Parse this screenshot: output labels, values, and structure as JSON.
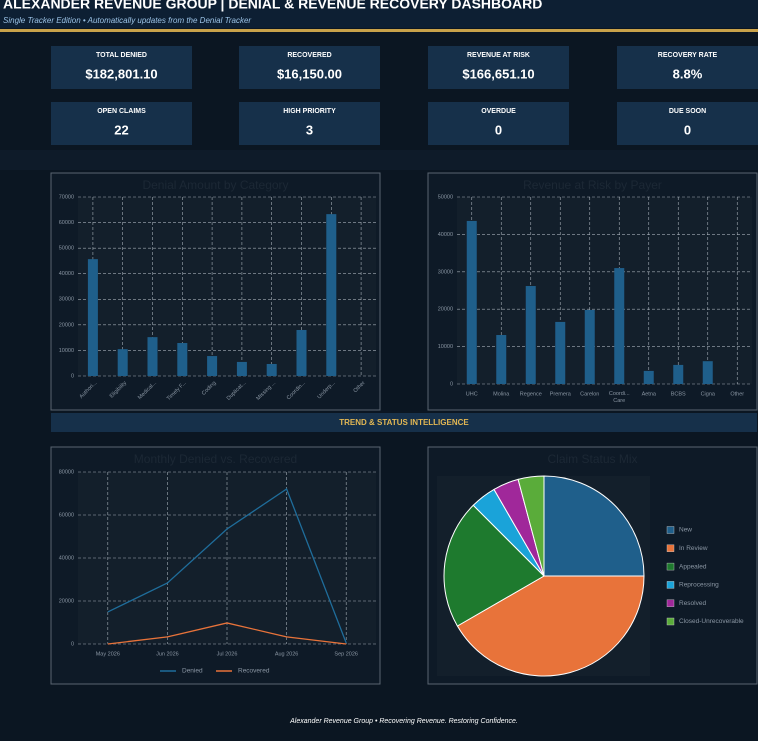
{
  "header": {
    "title": "ALEXANDER REVENUE GROUP | DENIAL & REVENUE RECOVERY DASHBOARD",
    "subtitle": "Single Tracker Edition • Automatically updates from the Denial Tracker"
  },
  "kpis": [
    {
      "label": "TOTAL DENIED",
      "value": "$182,801.10"
    },
    {
      "label": "RECOVERED",
      "value": "$16,150.00"
    },
    {
      "label": "REVENUE AT RISK",
      "value": "$166,651.10"
    },
    {
      "label": "RECOVERY RATE",
      "value": "8.8%"
    },
    {
      "label": "OPEN CLAIMS",
      "value": "22"
    },
    {
      "label": "HIGH PRIORITY",
      "value": "3"
    },
    {
      "label": "OVERDUE",
      "value": "0"
    },
    {
      "label": "DUE SOON",
      "value": "0"
    }
  ],
  "section_title": "TREND & STATUS INTELLIGENCE",
  "footer": "Alexander Revenue Group  •  Recovering Revenue. Restoring Confidence.",
  "chart_data": [
    {
      "type": "bar",
      "title": "Denial Amount by Category",
      "categories": [
        "Authori...",
        "Eligibility",
        "Medical...",
        "Timely F...",
        "Coding",
        "Duplicat...",
        "Missing ...",
        "Coordin...",
        "Underp...",
        "Other"
      ],
      "values": [
        45700,
        10500,
        15200,
        12900,
        7800,
        5500,
        4700,
        18000,
        63300,
        0
      ],
      "color": "#1f5f8b",
      "ylim": [
        0,
        70000
      ],
      "yticks": [
        0,
        10000,
        20000,
        30000,
        40000,
        50000,
        60000,
        70000
      ],
      "grid": true
    },
    {
      "type": "bar",
      "title": "Revenue at Risk by Payer",
      "categories": [
        "UHC",
        "Molina",
        "Regence",
        "Premera",
        "Carelon",
        "Coordi... Care",
        "Aetna",
        "BCBS",
        "Cigna",
        "Other"
      ],
      "values": [
        43600,
        13100,
        26200,
        16600,
        19800,
        31000,
        3500,
        5100,
        6100,
        0
      ],
      "color": "#1f5f8b",
      "ylim": [
        0,
        50000
      ],
      "yticks": [
        0,
        10000,
        20000,
        30000,
        40000,
        50000
      ],
      "grid": true
    },
    {
      "type": "line",
      "title": "Monthly Denied vs. Recovered",
      "categories": [
        "May 2026",
        "Jun 2026",
        "Jul 2026",
        "Aug 2026",
        "Sep 2026"
      ],
      "series": [
        {
          "name": "Denied",
          "color": "#1f6d9b",
          "values": [
            14900,
            28400,
            53500,
            72100,
            500
          ]
        },
        {
          "name": "Recovered",
          "color": "#e8733a",
          "values": [
            0,
            3300,
            9800,
            3300,
            0
          ]
        }
      ],
      "ylim": [
        0,
        80000
      ],
      "yticks": [
        0,
        20000,
        40000,
        60000,
        80000
      ],
      "grid": true,
      "legend": "bottom"
    },
    {
      "type": "pie",
      "title": "Claim Status Mix",
      "categories": [
        "New",
        "In Review",
        "Appealed",
        "Reprocessing",
        "Resolved",
        "Closed-Unrecoverable"
      ],
      "values": [
        6,
        10,
        5,
        1,
        1,
        1
      ],
      "colors": [
        "#1f5f8b",
        "#e8733a",
        "#1e7a2e",
        "#1aa3d9",
        "#a0289a",
        "#5aac3a"
      ],
      "legend": "right"
    }
  ]
}
